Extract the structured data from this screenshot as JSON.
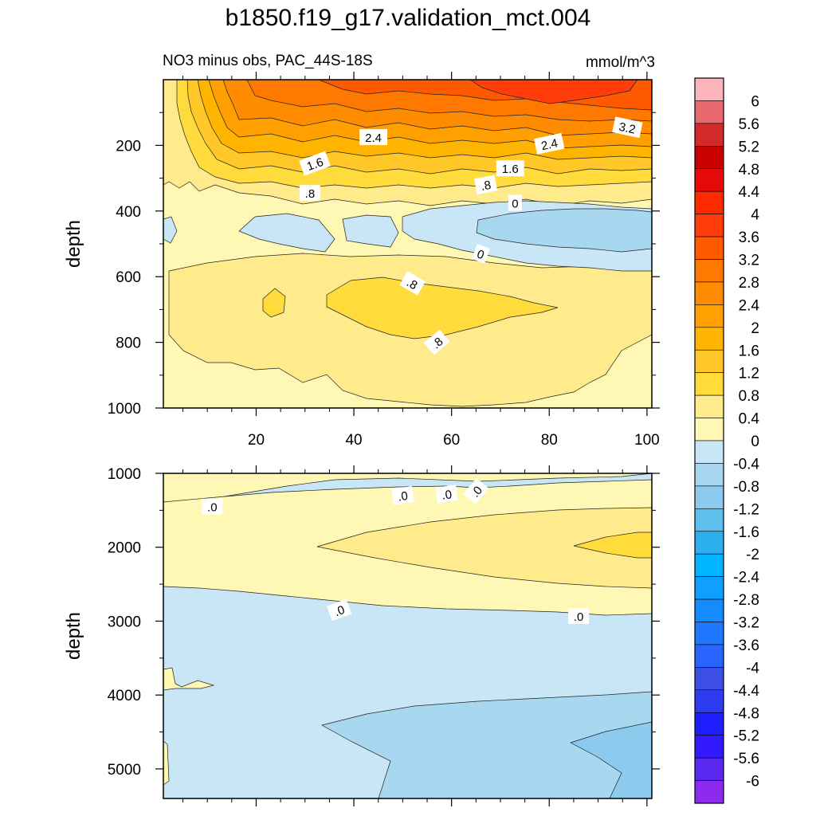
{
  "title": "b1850.f19_g17.validation_mct.004",
  "subtitle_left": "NO3 minus obs, PAC_44S-18S",
  "units": "mmol/m^3",
  "colorbar": {
    "labels": [
      "6",
      "5.6",
      "5.2",
      "4.8",
      "4.4",
      "4",
      "3.6",
      "3.2",
      "2.8",
      "2.4",
      "2",
      "1.6",
      "1.2",
      "0.8",
      "0.4",
      "0",
      "-0.4",
      "-0.8",
      "-1.2",
      "-1.6",
      "-2",
      "-2.4",
      "-2.8",
      "-3.2",
      "-3.6",
      "-4",
      "-4.4",
      "-4.8",
      "-5.2",
      "-5.6",
      "-6"
    ],
    "colors": [
      "#fbb4b9",
      "#e86a6e",
      "#d42a2a",
      "#c80000",
      "#e60a0a",
      "#ff2a00",
      "#ff3c0a",
      "#ff5a00",
      "#ff7800",
      "#ff8c00",
      "#ffa000",
      "#ffb400",
      "#ffc828",
      "#ffdc3c",
      "#ffeb8c",
      "#fff7b4",
      "#c8e6f5",
      "#a8d8f0",
      "#8ccaee",
      "#5ebeee",
      "#2cb0ee",
      "#00b4ff",
      "#0fa0ff",
      "#148cff",
      "#1e78ff",
      "#2864ff",
      "#3c50e6",
      "#2d3cf0",
      "#1e1eff",
      "#3219ff",
      "#5a28f0",
      "#8c2af0"
    ]
  },
  "chart_data": [
    {
      "type": "contour",
      "panel": "top",
      "ylabel": "depth",
      "xlim": [
        1,
        101
      ],
      "ylim": [
        1000,
        0
      ],
      "xticks": [
        20,
        40,
        60,
        80,
        100
      ],
      "yticks": [
        200,
        400,
        600,
        800,
        1000
      ],
      "contour_labels": [
        {
          "text": "2.4",
          "x": 44,
          "depth": 175
        },
        {
          "text": "3.2",
          "x": 96,
          "depth": 145
        },
        {
          "text": "2.4",
          "x": 80,
          "depth": 195
        },
        {
          "text": "1.6",
          "x": 32,
          "depth": 255
        },
        {
          "text": "1.6",
          "x": 72,
          "depth": 270
        },
        {
          "text": ".8",
          "x": 31,
          "depth": 345
        },
        {
          "text": ".8",
          "x": 67,
          "depth": 320
        },
        {
          "text": "0",
          "x": 73,
          "depth": 375
        },
        {
          "text": "0",
          "x": 66,
          "depth": 530
        },
        {
          "text": ".8",
          "x": 52,
          "depth": 620
        },
        {
          "text": ".8",
          "x": 57,
          "depth": 800
        }
      ]
    },
    {
      "type": "contour",
      "panel": "bottom",
      "ylabel": "depth",
      "xlim": [
        1,
        101
      ],
      "ylim": [
        1000,
        5400
      ],
      "yticks": [
        1000,
        2000,
        3000,
        4000,
        5000
      ],
      "contour_labels": [
        {
          "text": ".0",
          "x": 11,
          "depth": 1450
        },
        {
          "text": ".0",
          "x": 50,
          "depth": 1300
        },
        {
          "text": ".0",
          "x": 59,
          "depth": 1280
        },
        {
          "text": ".0",
          "x": 65,
          "depth": 1240
        },
        {
          "text": ".0",
          "x": 37,
          "depth": 2850
        },
        {
          "text": ".0",
          "x": 86,
          "depth": 2930
        }
      ]
    }
  ]
}
